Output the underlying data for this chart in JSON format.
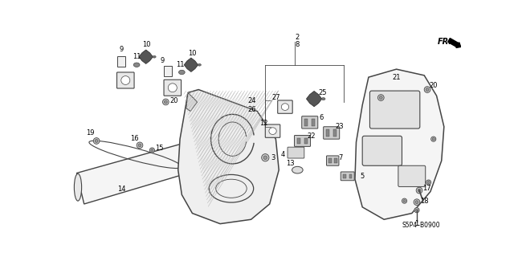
{
  "bg_color": "#ffffff",
  "diagram_code": "S5P4-B0900",
  "line_color": "#444444",
  "label_fontsize": 6.0
}
